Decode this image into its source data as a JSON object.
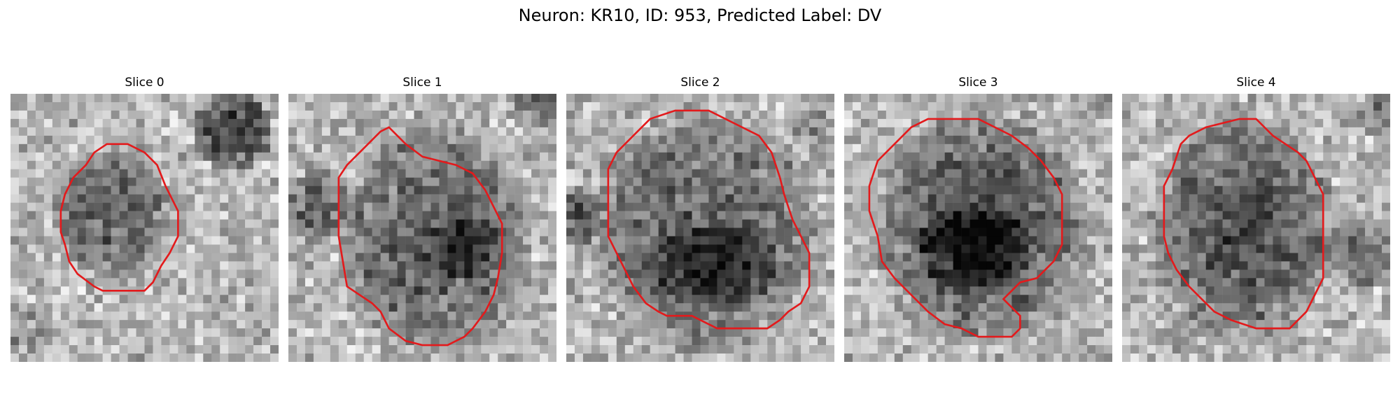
{
  "figure": {
    "title": "Neuron: KR10, ID: 953, Predicted Label: DV"
  },
  "slices": [
    {
      "title": "Slice 0"
    },
    {
      "title": "Slice 1"
    },
    {
      "title": "Slice 2"
    },
    {
      "title": "Slice 3"
    },
    {
      "title": "Slice 4"
    }
  ],
  "style": {
    "contour_color": "#e31a1c"
  }
}
